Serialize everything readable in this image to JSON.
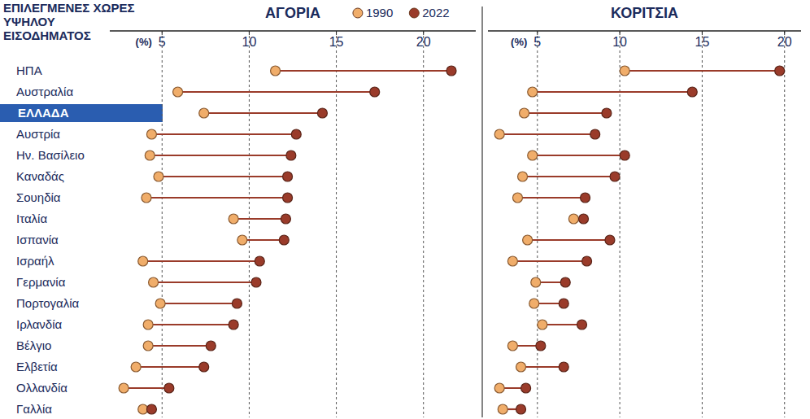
{
  "header": {
    "title": "ΕΠΙΛΕΓΜΕΝΕΣ ΧΩΡΕΣ ΥΨΗΛΟΥ ΕΙΣΟΔΗΜΑΤΟΣ"
  },
  "chart_data": {
    "type": "dumbbell",
    "orientation": "horizontal",
    "grid": true,
    "legend": "top",
    "categories": [
      "ΗΠΑ",
      "Αυστραλία",
      "ΕΛΛΑΔΑ",
      "Αυστρία",
      "Ην. Βασίλειο",
      "Καναδάς",
      "Σουηδία",
      "Ιταλία",
      "Ισπανία",
      "Ισραήλ",
      "Γερμανία",
      "Πορτογαλία",
      "Ιρλανδία",
      "Βέλγιο",
      "Ελβετία",
      "Ολλανδία",
      "Γαλλία"
    ],
    "panels": [
      {
        "title": "ΑΓΟΡΙΑ",
        "x_label": "(%)",
        "xlim": [
          2,
          23
        ],
        "xticks": [
          5,
          10,
          15,
          20
        ],
        "series": [
          {
            "name": "1990",
            "color": "#f0ad6a",
            "values": [
              11.5,
              5.9,
              7.4,
              4.4,
              4.3,
              4.8,
              4.1,
              9.1,
              9.6,
              3.9,
              4.5,
              4.9,
              4.2,
              4.2,
              3.5,
              2.8,
              3.9
            ]
          },
          {
            "name": "2022",
            "color": "#9a3b2a",
            "values": [
              21.6,
              17.2,
              14.2,
              12.7,
              12.4,
              12.2,
              12.2,
              12.1,
              12.0,
              10.6,
              10.4,
              9.3,
              9.1,
              7.8,
              7.4,
              5.4,
              4.4
            ]
          }
        ]
      },
      {
        "title": "ΚΟΡΙΤΣΙΑ",
        "x_label": "(%)",
        "xlim": [
          2,
          21
        ],
        "xticks": [
          5,
          10,
          15,
          20
        ],
        "series": [
          {
            "name": "1990",
            "color": "#f0ad6a",
            "values": [
              10.3,
              4.7,
              4.2,
              2.7,
              4.7,
              4.1,
              3.8,
              7.2,
              4.4,
              3.5,
              4.9,
              4.8,
              5.3,
              3.5,
              4.0,
              2.7,
              2.9
            ]
          },
          {
            "name": "2022",
            "color": "#9a3b2a",
            "values": [
              19.7,
              14.4,
              9.2,
              8.5,
              10.3,
              9.7,
              7.9,
              7.8,
              9.4,
              8.0,
              6.7,
              6.6,
              7.7,
              5.2,
              6.6,
              4.3,
              4.0
            ]
          }
        ]
      }
    ]
  }
}
